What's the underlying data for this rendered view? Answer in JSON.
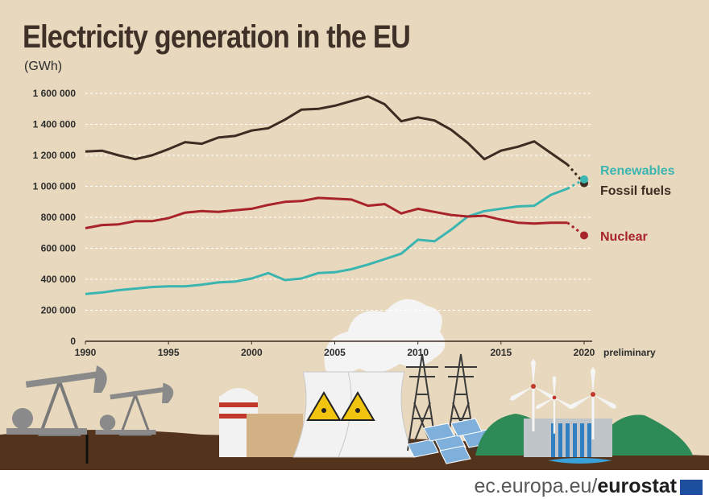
{
  "header": {
    "title": "Electricity generation in the EU",
    "unit": "(GWh)"
  },
  "footer": {
    "site": "ec.europa.eu/",
    "brand": "eurostat"
  },
  "colors": {
    "background": "#e8d8bd",
    "fossil": "#3d2c22",
    "renewables": "#3bb5b0",
    "nuclear": "#a8232a",
    "title": "#3f3128",
    "eu_blue": "#1d4f9e"
  },
  "illustration_icons": [
    "oil-pump-icon",
    "cooling-tower-icon",
    "radiation-icon",
    "power-pylon-icon",
    "solar-panel-icon",
    "wind-turbine-icon",
    "hydro-dam-icon"
  ],
  "chart_data": {
    "type": "line",
    "title": "Electricity generation in the EU",
    "ylabel": "(GWh)",
    "xlabel": "",
    "ylim": [
      0,
      1600000
    ],
    "yticks": [
      0,
      200000,
      400000,
      600000,
      800000,
      1000000,
      1200000,
      1400000,
      1600000
    ],
    "ytick_labels": [
      "0",
      "200 000",
      "400 000",
      "600 000",
      "800 000",
      "1 000 000",
      "1 200 000",
      "1 400 000",
      "1 600 000"
    ],
    "xlim": [
      1990,
      2020
    ],
    "xticks": [
      1990,
      1995,
      2000,
      2005,
      2010,
      2015,
      2020
    ],
    "xtick_labels": [
      "1990",
      "1995",
      "2000",
      "2005",
      "2010",
      "2015",
      "2020"
    ],
    "x_annotation": "preliminary",
    "preliminary_from": 2019,
    "grid": "horizontal-dashed",
    "x": [
      1990,
      1991,
      1992,
      1993,
      1994,
      1995,
      1996,
      1997,
      1998,
      1999,
      2000,
      2001,
      2002,
      2003,
      2004,
      2005,
      2006,
      2007,
      2008,
      2009,
      2010,
      2011,
      2012,
      2013,
      2014,
      2015,
      2016,
      2017,
      2018,
      2019,
      2020
    ],
    "series": [
      {
        "name": "Fossil fuels",
        "color": "#3d2c22",
        "values": [
          1225000,
          1230000,
          1200000,
          1175000,
          1200000,
          1240000,
          1285000,
          1275000,
          1315000,
          1325000,
          1360000,
          1375000,
          1430000,
          1495000,
          1500000,
          1520000,
          1550000,
          1580000,
          1530000,
          1420000,
          1445000,
          1425000,
          1365000,
          1280000,
          1175000,
          1230000,
          1255000,
          1290000,
          1215000,
          1140000,
          1020000
        ]
      },
      {
        "name": "Renewables",
        "color": "#3bb5b0",
        "values": [
          305000,
          315000,
          330000,
          340000,
          350000,
          355000,
          355000,
          365000,
          380000,
          385000,
          405000,
          440000,
          395000,
          405000,
          440000,
          445000,
          465000,
          495000,
          530000,
          565000,
          655000,
          645000,
          720000,
          805000,
          840000,
          855000,
          870000,
          875000,
          945000,
          985000,
          1045000
        ]
      },
      {
        "name": "Nuclear",
        "color": "#a8232a",
        "values": [
          730000,
          750000,
          755000,
          775000,
          775000,
          795000,
          830000,
          840000,
          835000,
          845000,
          855000,
          880000,
          900000,
          905000,
          925000,
          920000,
          915000,
          875000,
          885000,
          825000,
          855000,
          835000,
          815000,
          805000,
          810000,
          785000,
          765000,
          760000,
          765000,
          765000,
          683000
        ]
      }
    ]
  }
}
